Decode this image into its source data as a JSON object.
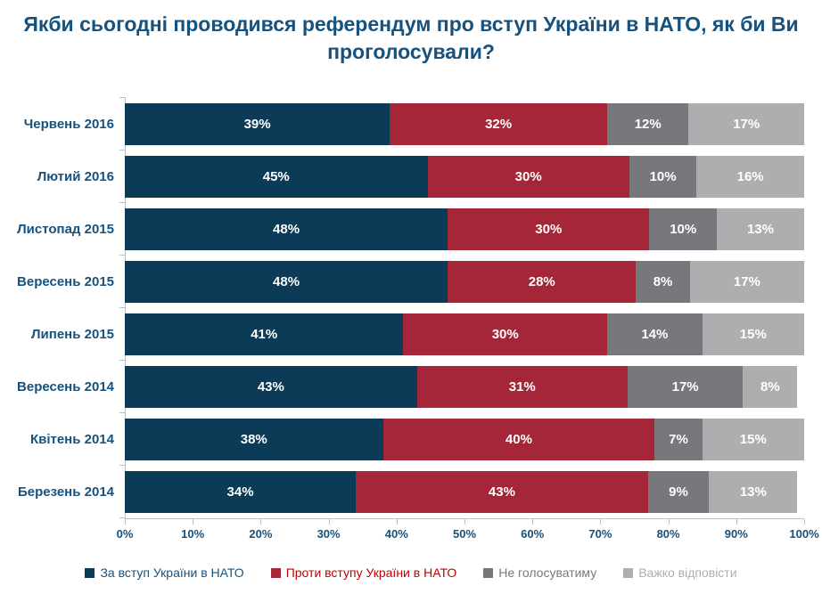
{
  "title": "Якби сьогодні проводився референдум про вступ України в НАТО, як би Ви проголосували?",
  "colors": {
    "title_text": "#16527D",
    "axis_line": "#BFBFBF",
    "bar_value_text": "#FFFFFF",
    "background": "#FFFFFF"
  },
  "chart_data": {
    "type": "bar",
    "orientation": "horizontal-stacked",
    "title": "Якби сьогодні проводився референдум про вступ України в НАТО, як би Ви проголосували?",
    "categories": [
      "Червень 2016",
      "Лютий 2016",
      "Листопад 2015",
      "Вересень 2015",
      "Липень 2015",
      "Вересень 2014",
      "Квітень 2014",
      "Березень 2014"
    ],
    "series": [
      {
        "name": "За вступ України в НАТО",
        "color": "#0C3B58",
        "label_color": "#16527D",
        "values": [
          39,
          45,
          48,
          48,
          41,
          43,
          38,
          34
        ]
      },
      {
        "name": "Проти вступу України в НАТО",
        "color": "#A62639",
        "label_color": "#C00000",
        "values": [
          32,
          30,
          30,
          28,
          30,
          31,
          40,
          43
        ]
      },
      {
        "name": "Не голосуватиму",
        "color": "#77787B",
        "label_color": "#77787B",
        "values": [
          12,
          10,
          10,
          8,
          14,
          17,
          7,
          9
        ]
      },
      {
        "name": "Важко відповісти",
        "color": "#AEAEB0",
        "label_color": "#AEAEB0",
        "values": [
          17,
          16,
          13,
          17,
          15,
          8,
          15,
          13
        ]
      }
    ],
    "value_suffix": "%",
    "xlim": [
      0,
      100
    ],
    "x_ticks": [
      "0%",
      "10%",
      "20%",
      "30%",
      "40%",
      "50%",
      "60%",
      "70%",
      "80%",
      "90%",
      "100%"
    ],
    "grid": false,
    "legend_position": "bottom"
  }
}
